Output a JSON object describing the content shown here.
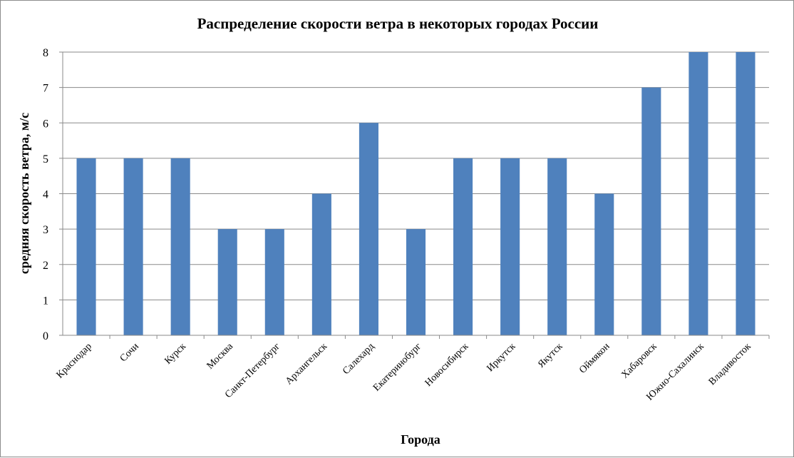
{
  "chart_data": {
    "type": "bar",
    "title": "Распределение скорости ветра в некоторых городах России",
    "xlabel": "Города",
    "ylabel": "средняя скорость ветра, м/с",
    "ylim": [
      0,
      8
    ],
    "yticks": [
      "0",
      "1",
      "2",
      "3",
      "4",
      "5",
      "6",
      "7",
      "8"
    ],
    "grid": true,
    "legend": "none",
    "bar_color": "#4F81BD",
    "categories": [
      "Краснодар",
      "Сочи",
      "Курск",
      "Москва",
      "Санкт-Петербург",
      "Архангельск",
      "Салехард",
      "Екатеринобург",
      "Новосибирск",
      "Иркутск",
      "Якутск",
      "Оймякон",
      "Хабаровск",
      "Южно-Сахалинск",
      "Владивосток"
    ],
    "values": [
      5,
      5,
      5,
      3,
      3,
      4,
      6,
      3,
      5,
      5,
      5,
      4,
      7,
      8,
      8
    ]
  }
}
